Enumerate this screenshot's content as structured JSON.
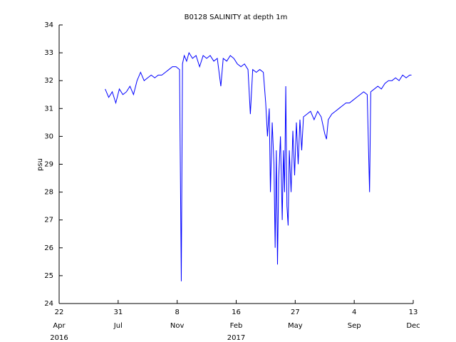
{
  "chart_data": {
    "type": "line",
    "title": "B0128 SALINITY at depth 1m",
    "y_label": "psu",
    "color": "#0000ff",
    "x": [
      "2016-07-09",
      "2016-07-15",
      "2016-07-21",
      "2016-07-27",
      "2016-08-02",
      "2016-08-08",
      "2016-08-14",
      "2016-08-20",
      "2016-08-26",
      "2016-09-01",
      "2016-09-07",
      "2016-09-13",
      "2016-09-19",
      "2016-09-25",
      "2016-10-01",
      "2016-10-07",
      "2016-10-13",
      "2016-10-19",
      "2016-10-25",
      "2016-10-31",
      "2016-11-06",
      "2016-11-12",
      "2016-11-15",
      "2016-11-17",
      "2016-11-20",
      "2016-11-24",
      "2016-11-28",
      "2016-12-04",
      "2016-12-10",
      "2016-12-16",
      "2016-12-22",
      "2016-12-28",
      "2017-01-03",
      "2017-01-09",
      "2017-01-15",
      "2017-01-21",
      "2017-01-25",
      "2017-01-31",
      "2017-02-06",
      "2017-02-12",
      "2017-02-18",
      "2017-02-24",
      "2017-03-02",
      "2017-03-08",
      "2017-03-12",
      "2017-03-16",
      "2017-03-22",
      "2017-03-28",
      "2017-04-03",
      "2017-04-07",
      "2017-04-10",
      "2017-04-13",
      "2017-04-15",
      "2017-04-18",
      "2017-04-21",
      "2017-04-23",
      "2017-04-25",
      "2017-04-27",
      "2017-04-29",
      "2017-05-02",
      "2017-05-05",
      "2017-05-07",
      "2017-05-09",
      "2017-05-11",
      "2017-05-13",
      "2017-05-15",
      "2017-05-17",
      "2017-05-20",
      "2017-05-23",
      "2017-05-26",
      "2017-05-29",
      "2017-06-01",
      "2017-06-04",
      "2017-06-07",
      "2017-06-10",
      "2017-06-16",
      "2017-06-22",
      "2017-06-28",
      "2017-07-04",
      "2017-07-10",
      "2017-07-16",
      "2017-07-19",
      "2017-07-22",
      "2017-07-28",
      "2017-08-03",
      "2017-08-09",
      "2017-08-15",
      "2017-08-21",
      "2017-08-27",
      "2017-09-02",
      "2017-09-08",
      "2017-09-14",
      "2017-09-20",
      "2017-09-26",
      "2017-09-30",
      "2017-10-02",
      "2017-10-08",
      "2017-10-14",
      "2017-10-20",
      "2017-10-26",
      "2017-11-01",
      "2017-11-07",
      "2017-11-13",
      "2017-11-19",
      "2017-11-25",
      "2017-12-01",
      "2017-12-07",
      "2017-12-10"
    ],
    "values": [
      31.7,
      31.4,
      31.6,
      31.2,
      31.7,
      31.5,
      31.6,
      31.8,
      31.5,
      32.0,
      32.3,
      32.0,
      32.1,
      32.2,
      32.1,
      32.2,
      32.2,
      32.3,
      32.4,
      32.5,
      32.5,
      32.4,
      24.8,
      32.6,
      32.9,
      32.7,
      33.0,
      32.8,
      32.9,
      32.5,
      32.9,
      32.8,
      32.9,
      32.7,
      32.8,
      31.8,
      32.8,
      32.7,
      32.9,
      32.8,
      32.6,
      32.5,
      32.6,
      32.4,
      30.8,
      32.4,
      32.3,
      32.4,
      32.3,
      31.2,
      30.0,
      31.0,
      28.0,
      30.5,
      29.0,
      26.0,
      29.5,
      25.4,
      28.5,
      30.0,
      27.0,
      29.5,
      28.0,
      31.8,
      27.5,
      26.8,
      29.5,
      28.0,
      30.2,
      28.6,
      30.5,
      29.0,
      30.6,
      29.5,
      30.7,
      30.8,
      30.9,
      30.6,
      30.9,
      30.7,
      30.1,
      29.9,
      30.6,
      30.8,
      30.9,
      31.0,
      31.1,
      31.2,
      31.2,
      31.3,
      31.4,
      31.5,
      31.6,
      31.5,
      28.0,
      31.6,
      31.7,
      31.8,
      31.7,
      31.9,
      32.0,
      32.0,
      32.1,
      32.0,
      32.2,
      32.1,
      32.2,
      32.2
    ],
    "xlim": [
      "2016-04-22",
      "2017-12-13"
    ],
    "xticks": [
      {
        "value": "2016-04-22",
        "label": "22"
      },
      {
        "value": "2016-07-31",
        "label": "31"
      },
      {
        "value": "2016-11-08",
        "label": "8"
      },
      {
        "value": "2017-02-16",
        "label": "16"
      },
      {
        "value": "2017-05-27",
        "label": "27"
      },
      {
        "value": "2017-09-04",
        "label": "4"
      },
      {
        "value": "2017-12-13",
        "label": "13"
      }
    ],
    "xtick_months": [
      "Apr",
      "Jul",
      "Nov",
      "Feb",
      "May",
      "Sep",
      "Dec"
    ],
    "xtick_years": [
      {
        "value": "2016-04-22",
        "label": "2016"
      },
      {
        "value": "2017-02-16",
        "label": "2017"
      }
    ],
    "ylim": [
      24,
      34
    ],
    "yticks": [
      24,
      25,
      26,
      27,
      28,
      29,
      30,
      31,
      32,
      33,
      34
    ]
  }
}
